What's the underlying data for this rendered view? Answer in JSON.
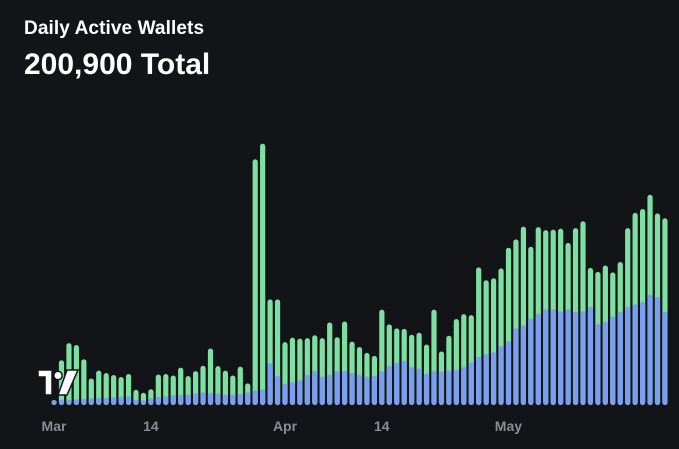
{
  "header": {
    "title": "Daily Active Wallets",
    "total": "200,900 Total"
  },
  "logo": {
    "icon": "tradingview-logo-icon"
  },
  "colors": {
    "background": "#131417",
    "series_a": "#7ee0a0",
    "series_b": "#7a9ff0",
    "tick": "#8a8d93"
  },
  "chart_data": {
    "type": "bar",
    "stacked": true,
    "title": "Daily Active Wallets",
    "grid": false,
    "legend": "none",
    "x_start": "Mar 1",
    "x_end": "May 24",
    "x_tick_labels": [
      {
        "label": "Mar",
        "day": 1
      },
      {
        "label": "14",
        "day": 14
      },
      {
        "label": "Apr",
        "day": 32
      },
      {
        "label": "14",
        "day": 45
      },
      {
        "label": "May",
        "day": 62
      }
    ],
    "ylim": [
      0,
      5800
    ],
    "series": [
      {
        "color": "#7a9ff0",
        "values": [
          0,
          100,
          110,
          110,
          120,
          130,
          140,
          150,
          150,
          160,
          170,
          180,
          110,
          100,
          140,
          170,
          180,
          200,
          210,
          220,
          240,
          260,
          250,
          240,
          220,
          220,
          230,
          260,
          300,
          320,
          850,
          600,
          440,
          470,
          510,
          620,
          700,
          580,
          620,
          690,
          700,
          660,
          620,
          580,
          600,
          690,
          800,
          860,
          900,
          780,
          740,
          640,
          700,
          690,
          700,
          720,
          780,
          870,
          980,
          1040,
          1080,
          1200,
          1300,
          1560,
          1620,
          1760,
          1860,
          1950,
          1950,
          1910,
          1950,
          1900,
          1910,
          2000,
          1650,
          1700,
          1800,
          1900,
          2000,
          2050,
          2100,
          2250,
          2200,
          1900
        ]
      },
      {
        "color": "#7ee0a0",
        "values": [
          0,
          0,
          800,
          1150,
          1100,
          800,
          400,
          550,
          500,
          450,
          400,
          450,
          200,
          150,
          180,
          450,
          450,
          400,
          550,
          370,
          450,
          540,
          900,
          550,
          480,
          380,
          550,
          180,
          4700,
          5000,
          1300,
          1550,
          840,
          900,
          840,
          740,
          720,
          780,
          1060,
          690,
          1000,
          630,
          560,
          480,
          400,
          1250,
          840,
          700,
          650,
          650,
          730,
          590,
          1240,
          400,
          710,
          1030,
          1070,
          960,
          1820,
          1500,
          1500,
          1580,
          1900,
          1810,
          2010,
          1460,
          1760,
          1610,
          1620,
          1680,
          1350,
          1700,
          1830,
          790,
          1060,
          1140,
          900,
          1010,
          1600,
          1860,
          1890,
          2030,
          1700,
          1900
        ]
      }
    ]
  }
}
